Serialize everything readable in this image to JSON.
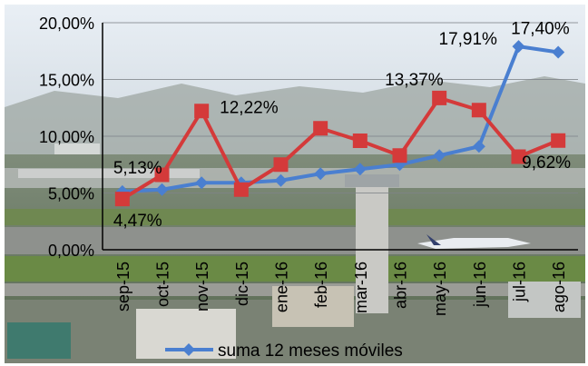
{
  "chart_data": {
    "type": "line",
    "categories": [
      "sep-15",
      "oct-15",
      "nov-15",
      "dic-15",
      "ene-16",
      "feb-16",
      "mar-16",
      "abr-16",
      "may-16",
      "jun-16",
      "jul-16",
      "ago-16"
    ],
    "series": [
      {
        "name": "suma 12 meses móviles",
        "values": [
          5.13,
          5.3,
          5.9,
          5.9,
          6.1,
          6.7,
          7.1,
          7.5,
          8.3,
          9.1,
          17.91,
          17.4
        ],
        "color": "#4a7fd0",
        "marker": "diamond"
      },
      {
        "values": [
          4.47,
          6.6,
          12.22,
          5.3,
          7.5,
          10.7,
          9.6,
          8.3,
          13.37,
          12.3,
          8.2,
          9.62
        ],
        "color": "#d43a3a",
        "marker": "square"
      }
    ],
    "data_labels": [
      {
        "series": 0,
        "index": 0,
        "text": "5,13%"
      },
      {
        "series": 1,
        "index": 0,
        "text": "4,47%"
      },
      {
        "series": 1,
        "index": 2,
        "text": "12,22%"
      },
      {
        "series": 1,
        "index": 8,
        "text": "13,37%"
      },
      {
        "series": 0,
        "index": 10,
        "text": "17,91%"
      },
      {
        "series": 0,
        "index": 11,
        "text": "17,40%"
      },
      {
        "series": 1,
        "index": 11,
        "text": "9,62%"
      }
    ],
    "yticks": [
      "0,00%",
      "5,00%",
      "10,00%",
      "15,00%",
      "20,00%"
    ],
    "ylim": [
      0,
      20
    ],
    "grid": true,
    "legend_position": "bottom",
    "legend_label": "suma 12 meses móviles"
  }
}
